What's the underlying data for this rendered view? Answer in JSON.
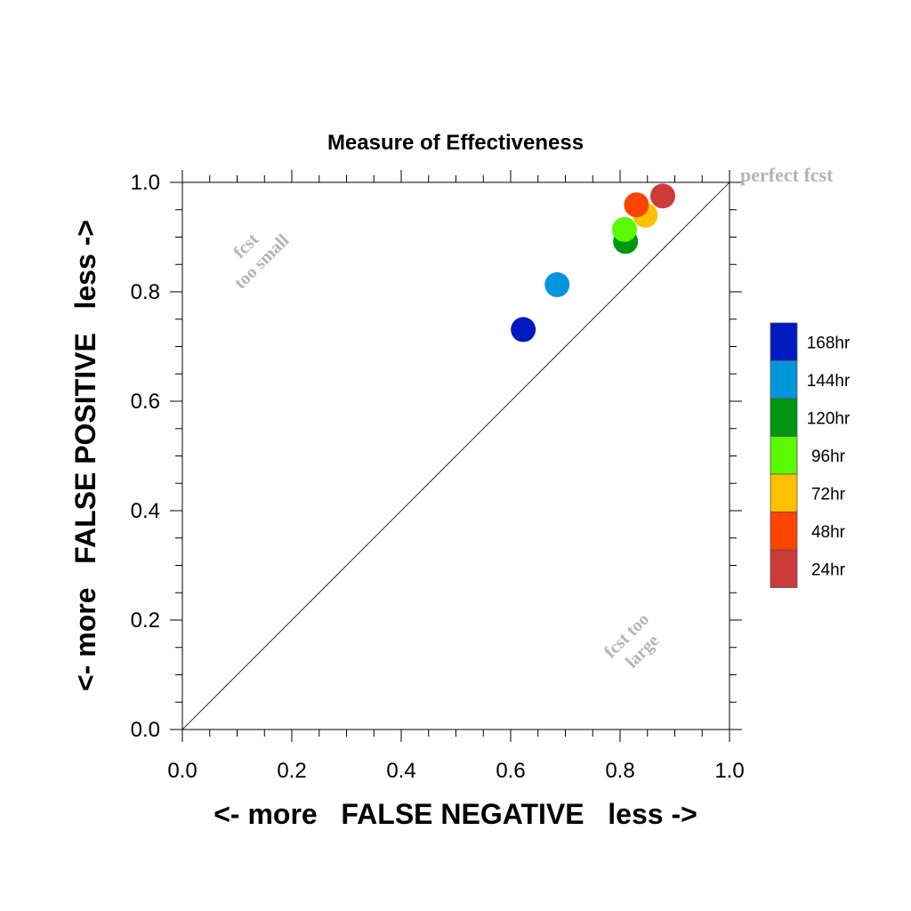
{
  "chart_data": {
    "type": "scatter",
    "title": "Measure of Effectiveness",
    "xlabel": "<- more   FALSE NEGATIVE   less ->",
    "ylabel": "<- more   FALSE POSITIVE   less ->",
    "xlim": [
      0,
      1
    ],
    "ylim": [
      0,
      1
    ],
    "xticks": [
      "0.0",
      "0.2",
      "0.4",
      "0.6",
      "0.8",
      "1.0"
    ],
    "yticks": [
      "0.0",
      "0.2",
      "0.4",
      "0.6",
      "0.8",
      "1.0"
    ],
    "grid": false,
    "legend_position": "right",
    "reference_line": {
      "from": [
        0,
        0
      ],
      "to": [
        1,
        1
      ]
    },
    "annotations": {
      "perfect": "perfect fcst",
      "small_line1": "fcst",
      "small_line2": "too small",
      "large_line1": "fcst too",
      "large_line2": "large"
    },
    "series": [
      {
        "name": "168hr",
        "color": "#0019c0",
        "x": 0.623,
        "y": 0.731
      },
      {
        "name": "144hr",
        "color": "#0096dc",
        "x": 0.685,
        "y": 0.813
      },
      {
        "name": "120hr",
        "color": "#009614",
        "x": 0.81,
        "y": 0.892
      },
      {
        "name": "96hr",
        "color": "#5afa00",
        "x": 0.808,
        "y": 0.914
      },
      {
        "name": "72hr",
        "color": "#ffc000",
        "x": 0.846,
        "y": 0.94
      },
      {
        "name": "48hr",
        "color": "#ff4400",
        "x": 0.83,
        "y": 0.959
      },
      {
        "name": "24hr",
        "color": "#cc3a3a",
        "x": 0.878,
        "y": 0.975
      }
    ],
    "legend_order": [
      "168hr",
      "144hr",
      "120hr",
      "96hr",
      "72hr",
      "48hr",
      "24hr"
    ]
  }
}
